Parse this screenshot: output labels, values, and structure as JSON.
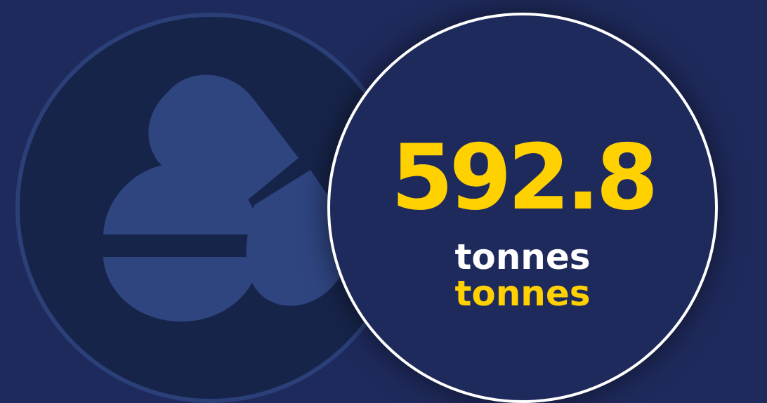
{
  "stat": {
    "value": "592.8",
    "unit_primary": "tonnes",
    "unit_secondary": "tonnes"
  },
  "icons": {
    "main": "pills-icon"
  },
  "colors": {
    "background": "#1f2a5c",
    "icon_circle": "#17244a",
    "icon_fill": "#2f4580",
    "accent": "#ffd100",
    "ring": "#ffffff"
  }
}
